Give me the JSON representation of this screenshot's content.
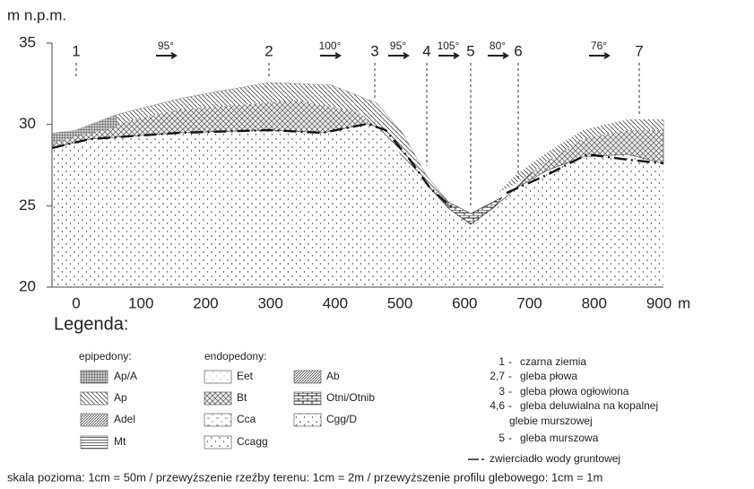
{
  "axis": {
    "y_label": "m n.p.m.",
    "x_unit": "m",
    "yticks": [
      20,
      25,
      30,
      35
    ],
    "xticks": [
      0,
      100,
      200,
      300,
      400,
      500,
      600,
      700,
      800,
      900
    ]
  },
  "profiles": [
    "1",
    "2",
    "3",
    "4",
    "5",
    "6",
    "7"
  ],
  "aspects": [
    "95°",
    "100°",
    "95°",
    "105°",
    "80°",
    "76°"
  ],
  "legend": {
    "title": "Legenda:",
    "epipedons": {
      "title": "epipedony:",
      "items": [
        "Ap/A",
        "Ap",
        "Adel",
        "Mt"
      ]
    },
    "endopedons": {
      "title": "endopedony:",
      "items": [
        "Eet",
        "Bt",
        "Cca",
        "Ccagg",
        "Ab",
        "Otni/Otnib",
        "Cgg/D"
      ]
    },
    "soils": [
      {
        "key": "1",
        "text": "czarna ziemia"
      },
      {
        "key": "2,7",
        "text": "gleba płowa"
      },
      {
        "key": "3",
        "text": "gleba płowa ogłowiona"
      },
      {
        "key": "4,6",
        "text": "gleba deluwialna na kopalnej"
      },
      {
        "key": "",
        "text": "glebie murszowej"
      },
      {
        "key": "5",
        "text": "gleba murszowa"
      }
    ],
    "water": "zwierciadło wody gruntowej"
  },
  "caption": "skala pozioma: 1cm = 50m / przewyższenie rzeźby terenu: 1cm = 2m / przewyższenie profilu glebowego: 1cm = 1m"
}
